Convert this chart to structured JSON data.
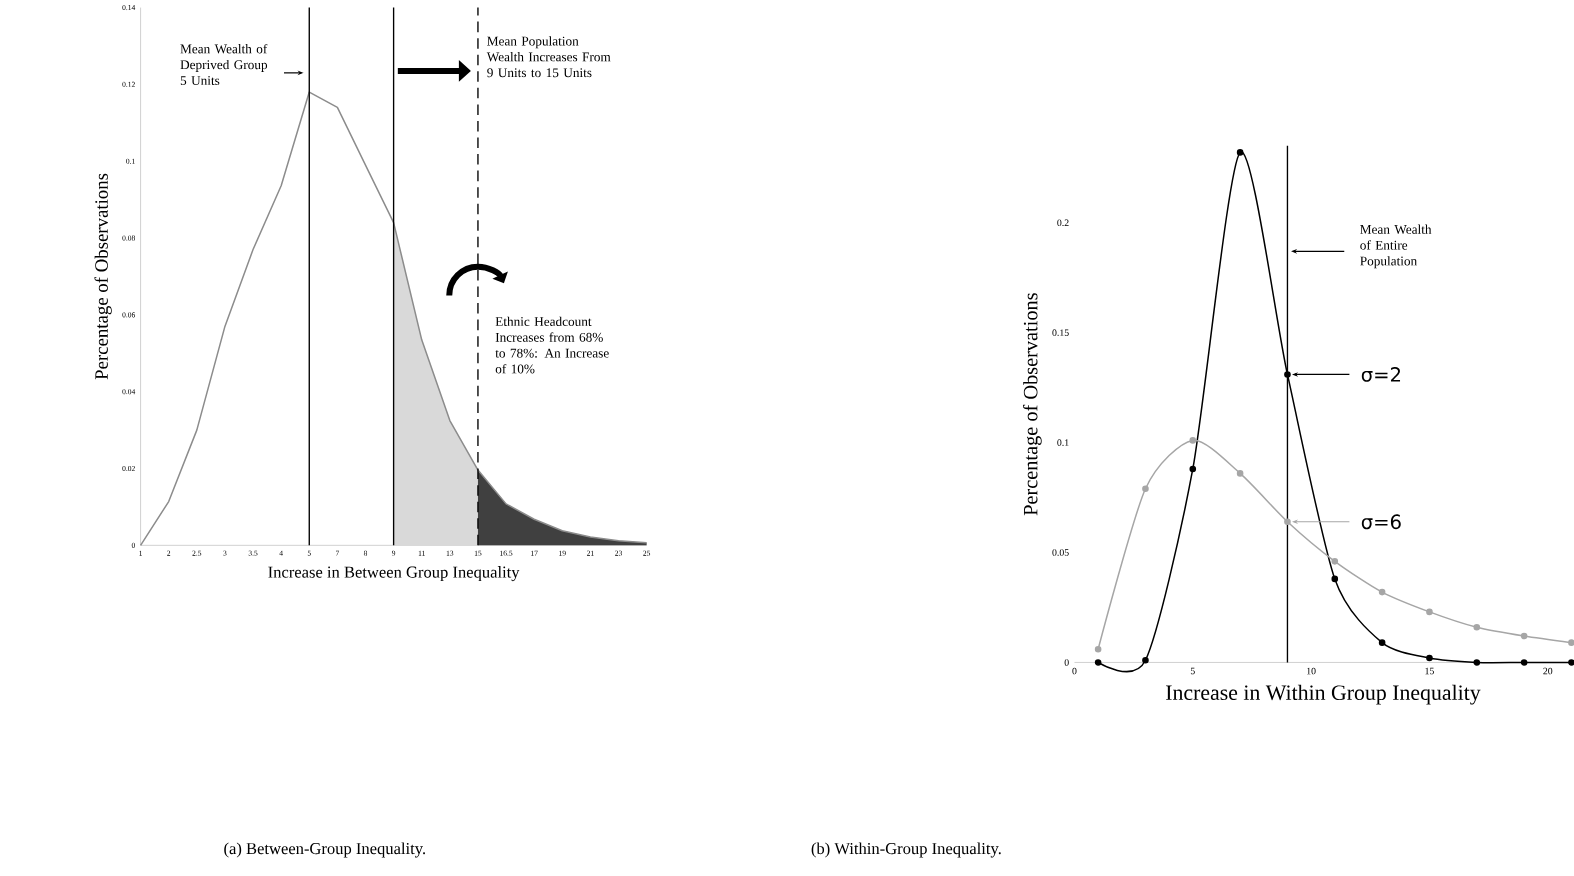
{
  "chart_data": [
    {
      "type": "line",
      "title": "(a) Between-Group Inequality.",
      "xlabel": "Increase in Between Group Inequality",
      "ylabel": "Percentage of Observations",
      "categories": [
        "1",
        "2",
        "2.5",
        "3",
        "3.5",
        "4",
        "5",
        "7",
        "8",
        "9",
        "11",
        "13",
        "15",
        "16.5",
        "17",
        "19",
        "21",
        "23",
        "25"
      ],
      "ylim": [
        0,
        0.14
      ],
      "yticks": [
        0,
        0.02,
        0.04,
        0.06,
        0.08,
        0.1,
        0.12,
        0.14
      ],
      "series": [
        {
          "type": "area",
          "color": "#d9d9d9",
          "values": [
            null,
            null,
            null,
            null,
            null,
            null,
            null,
            null,
            null,
            0.084,
            0.0535,
            0.0325,
            0.0196,
            null,
            null,
            null,
            null,
            null,
            null
          ]
        },
        {
          "type": "area",
          "color": "#404040",
          "values": [
            null,
            null,
            null,
            null,
            null,
            null,
            null,
            null,
            null,
            null,
            null,
            null,
            0.0196,
            0.0108,
            0.0068,
            0.0038,
            0.0022,
            0.0012,
            0.0007
          ]
        },
        {
          "type": "line",
          "color": "#8c8c8c",
          "values": [
            0,
            0.0114,
            0.03,
            0.057,
            0.077,
            0.0936,
            0.118,
            0.114,
            0.099,
            0.084,
            0.0535,
            0.0325,
            0.0196,
            0.0108,
            0.0068,
            0.0038,
            0.0022,
            0.0012,
            0.0007
          ]
        }
      ],
      "ref_lines": [
        {
          "axis": "x",
          "value": "5",
          "label": "Mean Wealth of Deprived Group 5 Units"
        },
        {
          "axis": "x",
          "value": "9"
        },
        {
          "axis": "x",
          "value": "15",
          "label": "Mean Population Wealth Increases From 9 Units to 15 Units",
          "line_style": "dashed"
        }
      ],
      "annotations": [
        "Ethnic Headcount Increases from 68% to 78%: An Increase of 10%"
      ]
    },
    {
      "type": "line",
      "title": "(b) Within-Group Inequality.",
      "xlabel": "Increase in Within Group Inequality",
      "ylabel": "Percentage of Observations",
      "x": [
        1,
        3,
        5,
        7,
        9,
        11,
        13,
        15,
        17,
        19,
        21
      ],
      "legend": "right",
      "xlim": [
        0,
        21
      ],
      "xticks": [
        0,
        5,
        10,
        15,
        20
      ],
      "ylim": [
        0,
        0.235
      ],
      "yticks": [
        0,
        0.05,
        0.1,
        0.15,
        0.2
      ],
      "marker": "circle",
      "series": [
        {
          "name": "σ=2",
          "color": "#000000",
          "values": [
            0,
            0.001,
            0.088,
            0.232,
            0.131,
            0.038,
            0.009,
            0.002,
            0,
            0,
            0
          ]
        },
        {
          "name": "σ=6",
          "color": "#a6a6a6",
          "values": [
            0.006,
            0.079,
            0.101,
            0.086,
            0.064,
            0.046,
            0.032,
            0.023,
            0.016,
            0.012,
            0.009
          ]
        }
      ],
      "ref_lines": [
        {
          "axis": "x",
          "value": 9,
          "label": "Mean Wealth of Entire Population"
        }
      ]
    }
  ]
}
